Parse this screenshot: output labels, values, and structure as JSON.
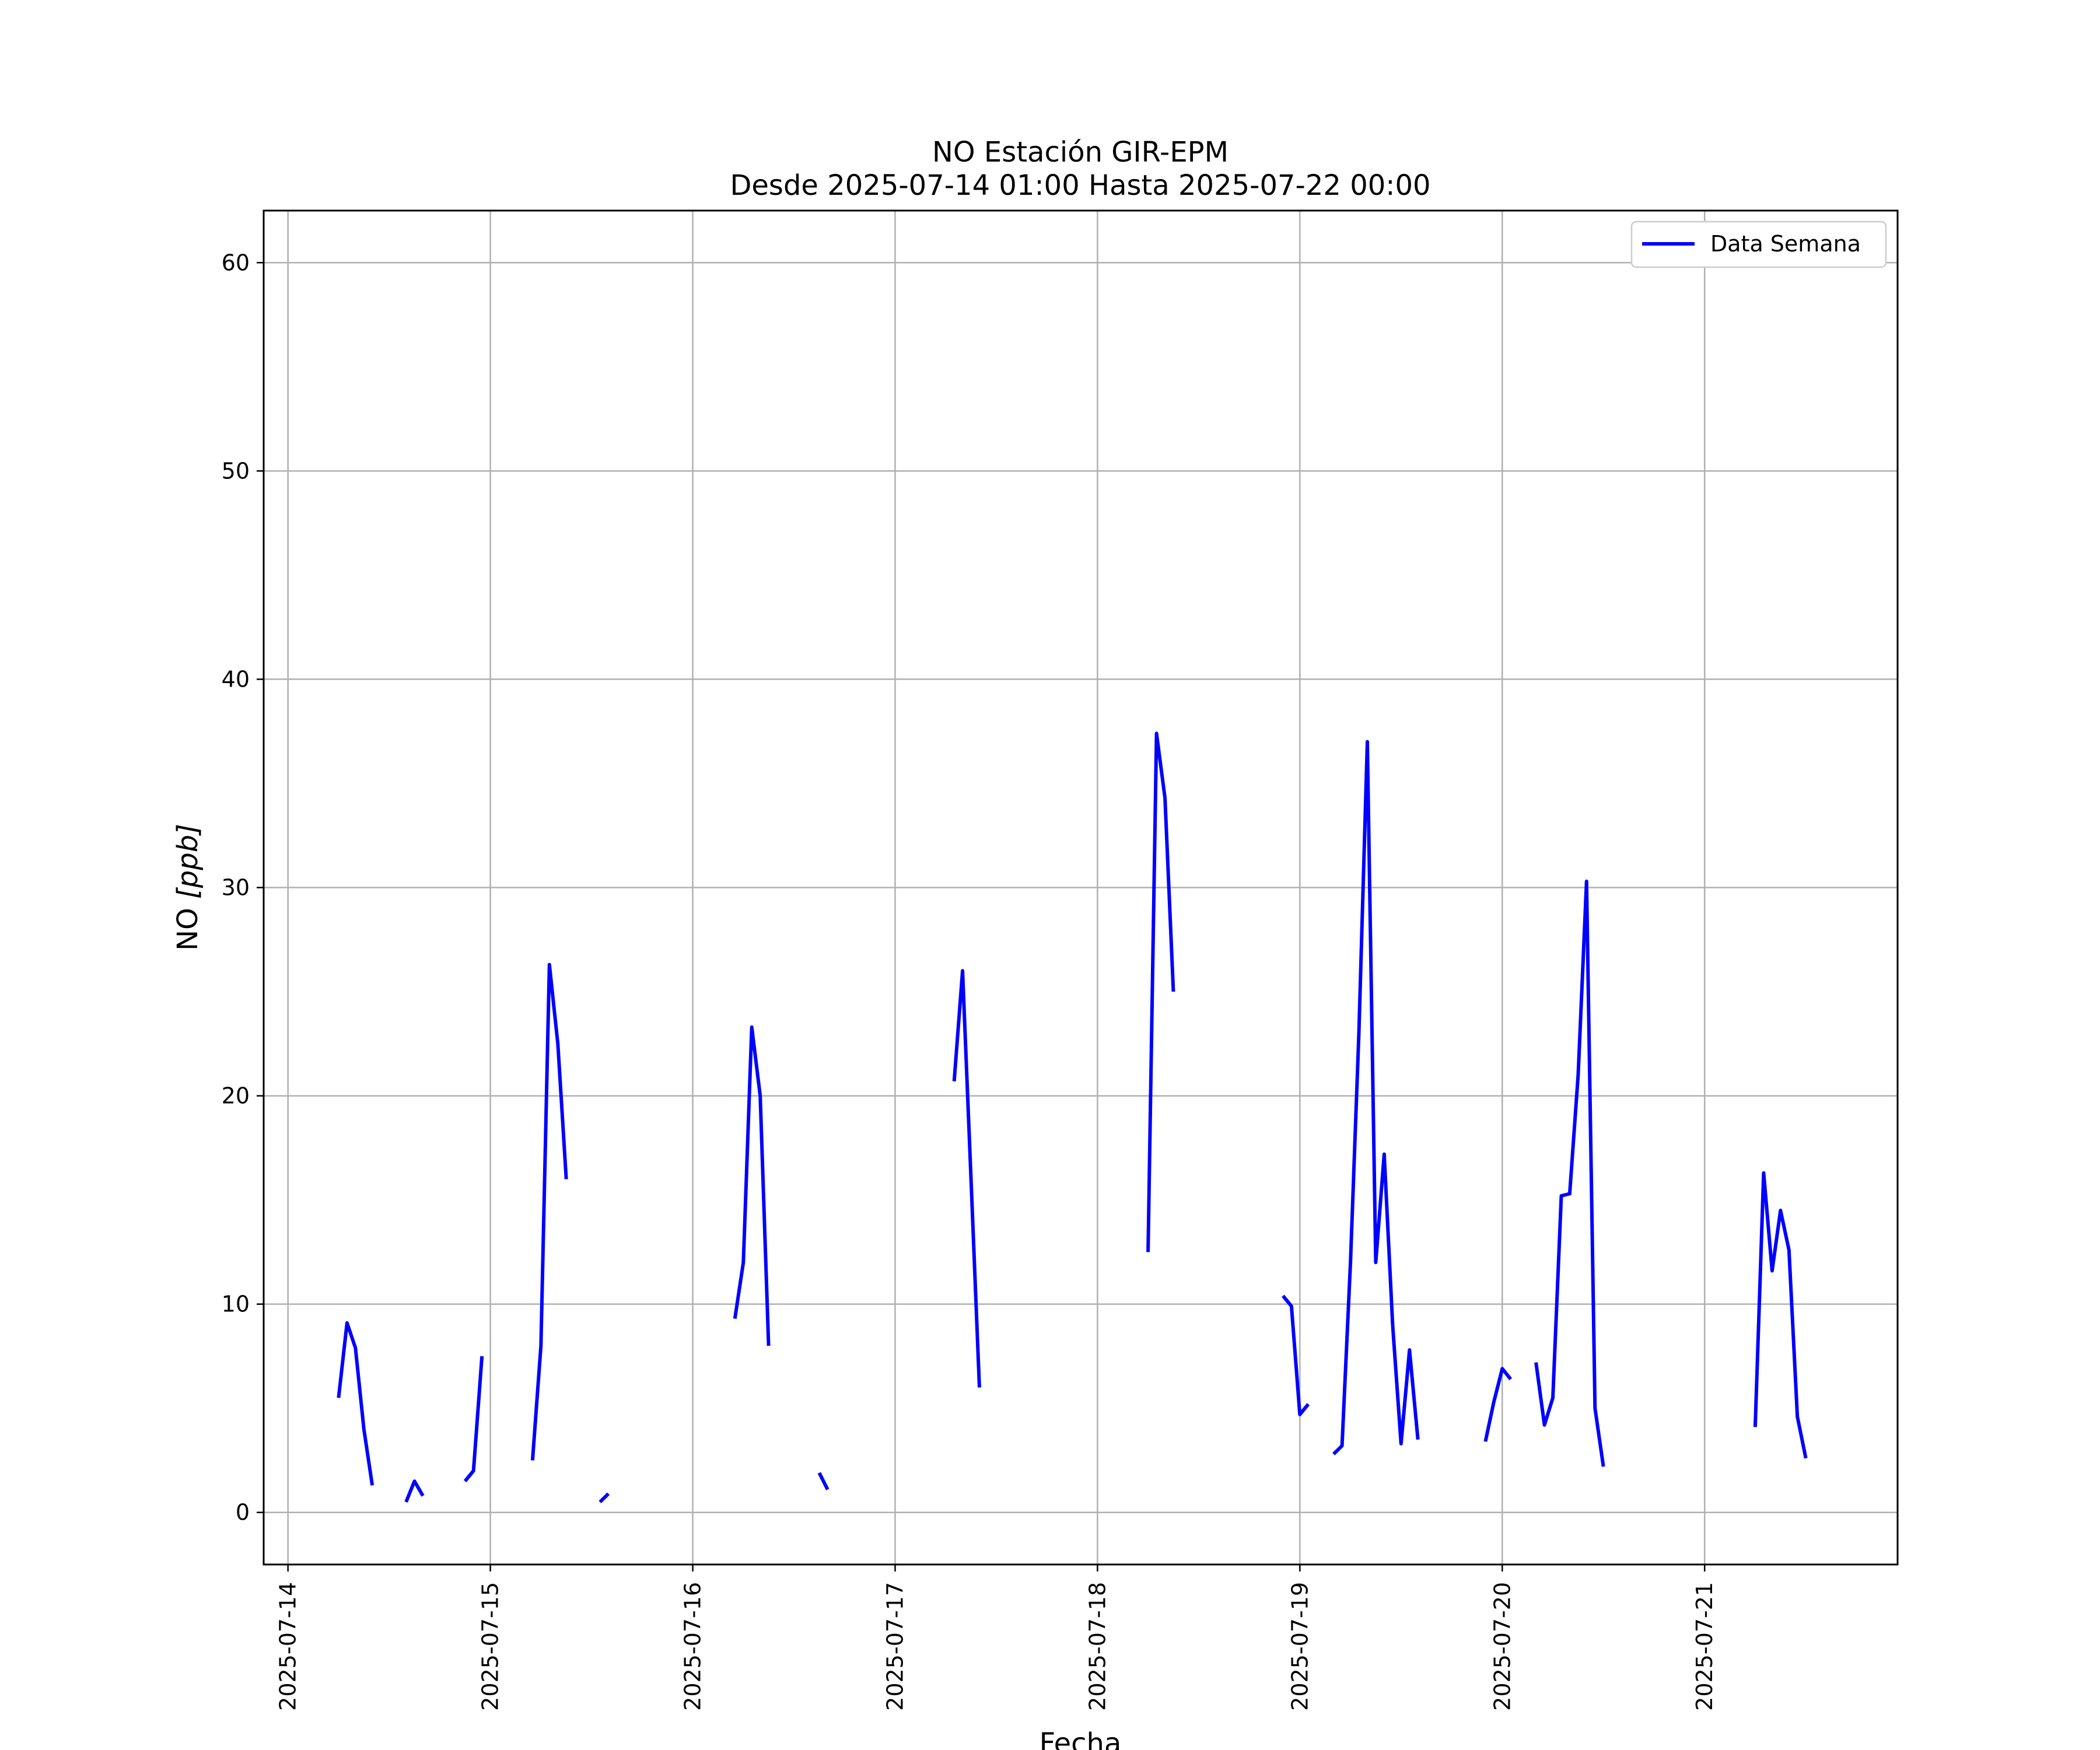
{
  "chart_data": {
    "type": "line",
    "title": "NO Estación GIR-EPM",
    "subtitle": "Desde 2025-07-14 01:00 Hasta 2025-07-22 00:00",
    "xlabel": "Fecha",
    "ylabel_main": "NO ",
    "ylabel_unit": "[ppb]",
    "ylim": [
      -2.5,
      62.5
    ],
    "xlim": [
      "2025-07-13 21:07",
      "2025-07-21 22:53"
    ],
    "grid": true,
    "legend_position": "top-right",
    "color": "#0000ff",
    "x_ticks": [
      "2025-07-14",
      "2025-07-15",
      "2025-07-16",
      "2025-07-17",
      "2025-07-18",
      "2025-07-19",
      "2025-07-20",
      "2025-07-21"
    ],
    "y_ticks": [
      0,
      10,
      20,
      30,
      40,
      50,
      60
    ],
    "series": [
      {
        "name": "Data Semana",
        "segments": [
          [
            [
              "2025-07-14 06:00",
              5.5
            ],
            [
              "2025-07-14 07:00",
              9.1
            ],
            [
              "2025-07-14 08:00",
              7.9
            ],
            [
              "2025-07-14 09:00",
              4.0
            ],
            [
              "2025-07-14 10:00",
              1.3
            ]
          ],
          [
            [
              "2025-07-14 14:00",
              0.5
            ],
            [
              "2025-07-14 15:00",
              1.5
            ],
            [
              "2025-07-14 16:00",
              0.8
            ]
          ],
          [
            [
              "2025-07-14 21:00",
              1.5
            ],
            [
              "2025-07-14 22:00",
              2.0
            ],
            [
              "2025-07-14 23:00",
              7.5
            ]
          ],
          [
            [
              "2025-07-15 05:00",
              2.5
            ],
            [
              "2025-07-15 06:00",
              8.0
            ],
            [
              "2025-07-15 07:00",
              26.3
            ],
            [
              "2025-07-15 08:00",
              22.5
            ],
            [
              "2025-07-15 09:00",
              16.0
            ]
          ],
          [
            [
              "2025-07-15 13:00",
              0.5
            ],
            [
              "2025-07-15 14:00",
              0.9
            ]
          ],
          [
            [
              "2025-07-16 05:00",
              9.3
            ],
            [
              "2025-07-16 06:00",
              12.0
            ],
            [
              "2025-07-16 07:00",
              23.3
            ],
            [
              "2025-07-16 08:00",
              20.0
            ],
            [
              "2025-07-16 09:00",
              8.0
            ]
          ],
          [
            [
              "2025-07-16 15:00",
              1.9
            ],
            [
              "2025-07-16 16:00",
              1.1
            ]
          ],
          [
            [
              "2025-07-17 07:00",
              20.7
            ],
            [
              "2025-07-17 08:00",
              26.0
            ],
            [
              "2025-07-17 09:00",
              16.0
            ],
            [
              "2025-07-17 10:00",
              6.0
            ]
          ],
          [
            [
              "2025-07-18 06:00",
              12.5
            ],
            [
              "2025-07-18 07:00",
              37.4
            ],
            [
              "2025-07-18 08:00",
              34.3
            ],
            [
              "2025-07-18 09:00",
              25.0
            ]
          ],
          [
            [
              "2025-07-18 22:00",
              10.4
            ],
            [
              "2025-07-18 23:00",
              9.9
            ],
            [
              "2025-07-19 00:00",
              4.7
            ],
            [
              "2025-07-19 01:00",
              5.2
            ]
          ],
          [
            [
              "2025-07-19 04:00",
              2.8
            ],
            [
              "2025-07-19 05:00",
              3.2
            ],
            [
              "2025-07-19 06:00",
              12.0
            ],
            [
              "2025-07-19 07:00",
              23.0
            ],
            [
              "2025-07-19 08:00",
              37.0
            ],
            [
              "2025-07-19 09:00",
              12.0
            ],
            [
              "2025-07-19 10:00",
              17.2
            ],
            [
              "2025-07-19 11:00",
              9.0
            ],
            [
              "2025-07-19 12:00",
              3.3
            ],
            [
              "2025-07-19 13:00",
              7.8
            ],
            [
              "2025-07-19 14:00",
              3.5
            ]
          ],
          [
            [
              "2025-07-19 22:00",
              3.4
            ],
            [
              "2025-07-19 23:00",
              5.3
            ],
            [
              "2025-07-20 00:00",
              6.9
            ],
            [
              "2025-07-20 01:00",
              6.4
            ]
          ],
          [
            [
              "2025-07-20 04:00",
              7.2
            ],
            [
              "2025-07-20 05:00",
              4.2
            ],
            [
              "2025-07-20 06:00",
              5.5
            ],
            [
              "2025-07-20 07:00",
              15.2
            ],
            [
              "2025-07-20 08:00",
              15.3
            ],
            [
              "2025-07-20 09:00",
              21.0
            ],
            [
              "2025-07-20 10:00",
              30.3
            ],
            [
              "2025-07-20 11:00",
              5.0
            ],
            [
              "2025-07-20 12:00",
              2.2
            ]
          ],
          [
            [
              "2025-07-21 06:00",
              4.1
            ],
            [
              "2025-07-21 07:00",
              16.3
            ],
            [
              "2025-07-21 08:00",
              11.6
            ],
            [
              "2025-07-21 09:00",
              14.5
            ],
            [
              "2025-07-21 10:00",
              12.6
            ],
            [
              "2025-07-21 11:00",
              4.6
            ],
            [
              "2025-07-21 12:00",
              2.6
            ]
          ]
        ]
      }
    ]
  }
}
